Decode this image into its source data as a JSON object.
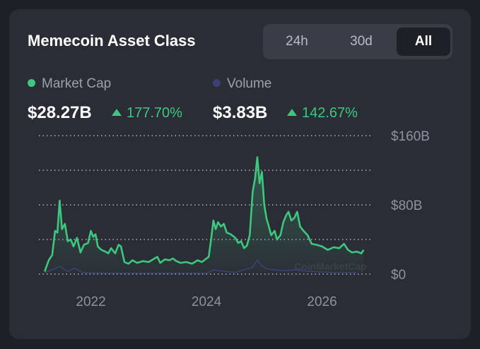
{
  "widget": {
    "title": "Memecoin Asset Class",
    "tabs": [
      {
        "label": "24h",
        "active": false
      },
      {
        "label": "30d",
        "active": false
      },
      {
        "label": "All",
        "active": true
      }
    ]
  },
  "metrics": [
    {
      "name": "Market Cap",
      "color": "#3ec77f",
      "value": "$28.27B",
      "change": "177.70%"
    },
    {
      "name": "Volume",
      "color": "#3b3f75",
      "value": "$3.83B",
      "change": "142.67%"
    }
  ],
  "chart_data": {
    "type": "area",
    "series": [
      {
        "name": "Market Cap",
        "color": "#3ec77f",
        "points": [
          [
            2021.2,
            3
          ],
          [
            2021.27,
            16
          ],
          [
            2021.33,
            22
          ],
          [
            2021.38,
            50
          ],
          [
            2021.42,
            48
          ],
          [
            2021.46,
            85
          ],
          [
            2021.5,
            52
          ],
          [
            2021.55,
            58
          ],
          [
            2021.6,
            38
          ],
          [
            2021.65,
            40
          ],
          [
            2021.7,
            32
          ],
          [
            2021.76,
            42
          ],
          [
            2021.82,
            25
          ],
          [
            2021.88,
            34
          ],
          [
            2021.95,
            36
          ],
          [
            2022.0,
            50
          ],
          [
            2022.04,
            43
          ],
          [
            2022.08,
            46
          ],
          [
            2022.12,
            32
          ],
          [
            2022.18,
            28
          ],
          [
            2022.25,
            26
          ],
          [
            2022.3,
            24
          ],
          [
            2022.35,
            30
          ],
          [
            2022.42,
            24
          ],
          [
            2022.48,
            34
          ],
          [
            2022.52,
            32
          ],
          [
            2022.58,
            14
          ],
          [
            2022.65,
            12
          ],
          [
            2022.72,
            16
          ],
          [
            2022.8,
            13
          ],
          [
            2022.9,
            15
          ],
          [
            2023.0,
            14
          ],
          [
            2023.1,
            18
          ],
          [
            2023.15,
            20
          ],
          [
            2023.2,
            13
          ],
          [
            2023.28,
            17
          ],
          [
            2023.36,
            16
          ],
          [
            2023.42,
            18
          ],
          [
            2023.48,
            15
          ],
          [
            2023.55,
            13
          ],
          [
            2023.65,
            14
          ],
          [
            2023.75,
            12
          ],
          [
            2023.85,
            16
          ],
          [
            2023.92,
            14
          ],
          [
            2024.0,
            18
          ],
          [
            2024.04,
            20
          ],
          [
            2024.08,
            40
          ],
          [
            2024.12,
            62
          ],
          [
            2024.16,
            52
          ],
          [
            2024.2,
            60
          ],
          [
            2024.25,
            55
          ],
          [
            2024.3,
            58
          ],
          [
            2024.35,
            48
          ],
          [
            2024.42,
            46
          ],
          [
            2024.5,
            42
          ],
          [
            2024.55,
            36
          ],
          [
            2024.6,
            38
          ],
          [
            2024.65,
            30
          ],
          [
            2024.7,
            33
          ],
          [
            2024.75,
            45
          ],
          [
            2024.8,
            95
          ],
          [
            2024.84,
            110
          ],
          [
            2024.88,
            135
          ],
          [
            2024.92,
            105
          ],
          [
            2024.96,
            118
          ],
          [
            2025.0,
            80
          ],
          [
            2025.04,
            64
          ],
          [
            2025.08,
            55
          ],
          [
            2025.12,
            45
          ],
          [
            2025.18,
            50
          ],
          [
            2025.22,
            40
          ],
          [
            2025.28,
            45
          ],
          [
            2025.33,
            60
          ],
          [
            2025.38,
            68
          ],
          [
            2025.42,
            72
          ],
          [
            2025.47,
            62
          ],
          [
            2025.52,
            65
          ],
          [
            2025.57,
            72
          ],
          [
            2025.62,
            55
          ],
          [
            2025.68,
            50
          ],
          [
            2025.75,
            45
          ],
          [
            2025.82,
            35
          ],
          [
            2025.9,
            34
          ],
          [
            2026.0,
            32
          ],
          [
            2026.1,
            28
          ],
          [
            2026.2,
            31
          ],
          [
            2026.3,
            30
          ],
          [
            2026.38,
            35
          ],
          [
            2026.45,
            28
          ],
          [
            2026.52,
            25
          ],
          [
            2026.6,
            26
          ],
          [
            2026.68,
            24
          ],
          [
            2026.72,
            28
          ]
        ]
      },
      {
        "name": "Volume",
        "color": "#3b3f75",
        "points": [
          [
            2021.2,
            2
          ],
          [
            2021.3,
            4
          ],
          [
            2021.46,
            9
          ],
          [
            2021.6,
            3
          ],
          [
            2021.72,
            7
          ],
          [
            2021.85,
            2
          ],
          [
            2022.2,
            1
          ],
          [
            2023.0,
            1
          ],
          [
            2024.0,
            1
          ],
          [
            2024.12,
            5
          ],
          [
            2024.2,
            4
          ],
          [
            2024.35,
            3
          ],
          [
            2024.5,
            2
          ],
          [
            2024.8,
            8
          ],
          [
            2024.88,
            16
          ],
          [
            2024.95,
            10
          ],
          [
            2025.05,
            6
          ],
          [
            2025.3,
            4
          ],
          [
            2025.55,
            5
          ],
          [
            2025.8,
            3
          ],
          [
            2026.2,
            2
          ],
          [
            2026.6,
            2
          ]
        ]
      }
    ],
    "x_ticks": [
      "2022",
      "2024",
      "2026"
    ],
    "y_ticks": [
      "$0",
      "$80B",
      "$160B"
    ],
    "xlim": [
      2021.1,
      2026.85
    ],
    "ylim": [
      0,
      160
    ],
    "grid": true,
    "watermark": "CoinMarketCap"
  }
}
